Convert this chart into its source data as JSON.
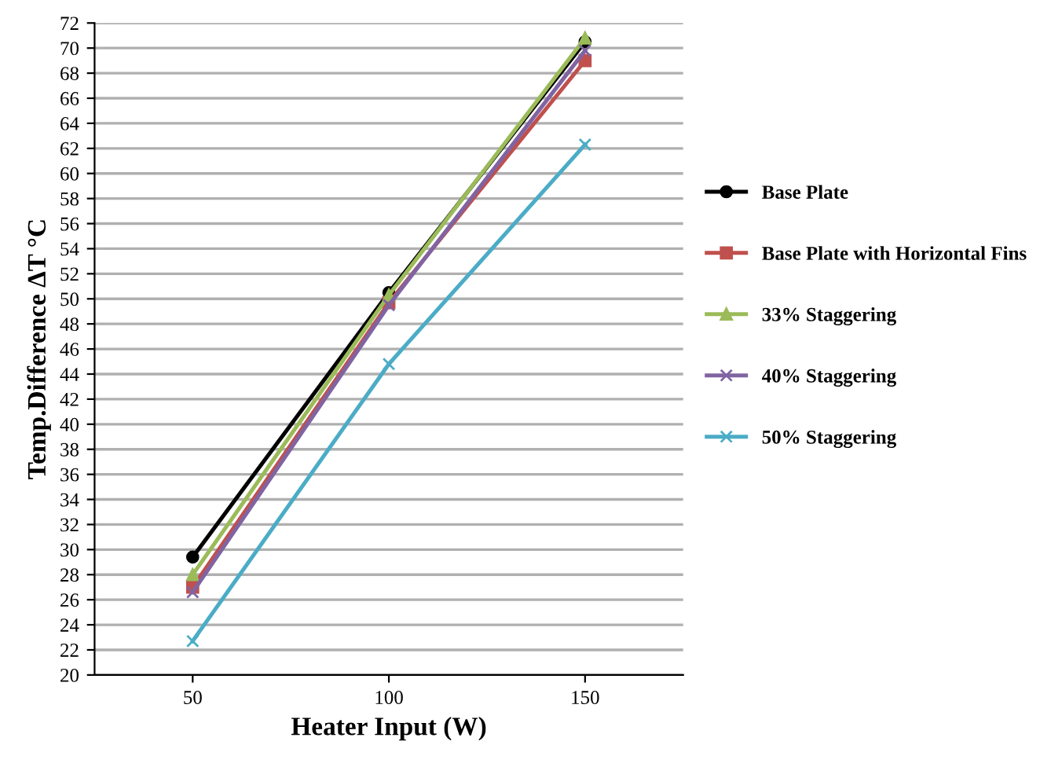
{
  "chart_data": {
    "type": "line",
    "xlabel": "Heater Input (W)",
    "ylabel": "Temp.Difference ∆T °C",
    "categories": [
      "50",
      "100",
      "150"
    ],
    "series": [
      {
        "name": "Base Plate",
        "color": "#000000",
        "marker": "circle",
        "values": [
          29.4,
          50.5,
          70.5
        ]
      },
      {
        "name": "Base Plate with Horizontal Fins",
        "color": "#c0504d",
        "marker": "square",
        "values": [
          27.0,
          49.7,
          69.0
        ]
      },
      {
        "name": "33% Staggering",
        "color": "#9bbb59",
        "marker": "triangle",
        "values": [
          28.0,
          50.3,
          70.8
        ]
      },
      {
        "name": "40% Staggering",
        "color": "#8064a2",
        "marker": "cross",
        "values": [
          26.6,
          49.5,
          69.8
        ]
      },
      {
        "name": "50% Staggering",
        "color": "#4bacc6",
        "marker": "cross",
        "values": [
          22.7,
          44.8,
          62.3
        ]
      }
    ],
    "ylim": [
      20,
      72
    ],
    "yticks": [
      20,
      22,
      24,
      26,
      28,
      30,
      32,
      34,
      36,
      38,
      40,
      42,
      44,
      46,
      48,
      50,
      52,
      54,
      56,
      58,
      60,
      62,
      64,
      66,
      68,
      70,
      72
    ],
    "grid": "y",
    "legend": "right"
  }
}
